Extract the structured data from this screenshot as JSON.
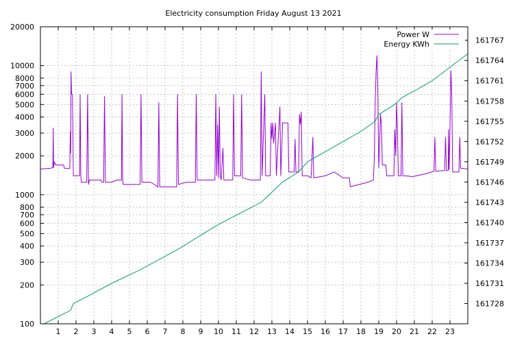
{
  "chart_data": {
    "type": "line",
    "title": "Electricity consumption Friday August 13 2021",
    "xlabel": "",
    "ylabel": "",
    "xlim": [
      0,
      24
    ],
    "x_ticks": [
      "1",
      "2",
      "3",
      "4",
      "5",
      "6",
      "7",
      "8",
      "9",
      "10",
      "11",
      "12",
      "13",
      "14",
      "15",
      "16",
      "17",
      "18",
      "19",
      "20",
      "21",
      "22",
      "23"
    ],
    "y_left": {
      "scale": "log",
      "lim": [
        100,
        20000
      ],
      "ticks": [
        "100",
        "200",
        "300",
        "400",
        "500",
        "600",
        "700",
        "800",
        "1000",
        "2000",
        "3000",
        "4000",
        "5000",
        "6000",
        "7000",
        "8000",
        "10000",
        "20000"
      ]
    },
    "y_right": {
      "scale": "linear",
      "lim": [
        161725,
        161769
      ],
      "ticks": [
        "161728",
        "161731",
        "161734",
        "161737",
        "161740",
        "161743",
        "161746",
        "161749",
        "161752",
        "161755",
        "161758",
        "161761",
        "161764",
        "161767"
      ]
    },
    "grid": true,
    "legend_position": "top-right",
    "series": [
      {
        "name": "Power W",
        "axis": "left",
        "color": "#9400d3",
        "values": [
          [
            0.0,
            1580
          ],
          [
            0.55,
            1600
          ],
          [
            0.7,
            1620
          ],
          [
            0.72,
            3300
          ],
          [
            0.74,
            1620
          ],
          [
            0.78,
            1800
          ],
          [
            0.85,
            1700
          ],
          [
            1.3,
            1700
          ],
          [
            1.35,
            1600
          ],
          [
            1.65,
            1600
          ],
          [
            1.68,
            3100
          ],
          [
            1.7,
            2100
          ],
          [
            1.72,
            9000
          ],
          [
            1.75,
            6000
          ],
          [
            1.8,
            6000
          ],
          [
            1.85,
            1400
          ],
          [
            2.2,
            1400
          ],
          [
            2.23,
            6000
          ],
          [
            2.27,
            1400
          ],
          [
            2.3,
            1250
          ],
          [
            2.6,
            1250
          ],
          [
            2.65,
            6000
          ],
          [
            2.7,
            1200
          ],
          [
            2.75,
            1300
          ],
          [
            3.4,
            1300
          ],
          [
            3.45,
            1250
          ],
          [
            3.55,
            1250
          ],
          [
            3.6,
            5800
          ],
          [
            3.65,
            1250
          ],
          [
            4.0,
            1250
          ],
          [
            4.3,
            1300
          ],
          [
            4.55,
            1300
          ],
          [
            4.58,
            6000
          ],
          [
            4.62,
            1300
          ],
          [
            4.65,
            1200
          ],
          [
            5.6,
            1200
          ],
          [
            5.65,
            6000
          ],
          [
            5.7,
            1250
          ],
          [
            6.2,
            1250
          ],
          [
            6.6,
            1150
          ],
          [
            6.65,
            5200
          ],
          [
            6.7,
            1150
          ],
          [
            7.0,
            1150
          ],
          [
            7.2,
            1150
          ],
          [
            7.65,
            1150
          ],
          [
            7.7,
            6000
          ],
          [
            7.75,
            1200
          ],
          [
            8.2,
            1250
          ],
          [
            8.7,
            1250
          ],
          [
            8.75,
            6000
          ],
          [
            8.8,
            1300
          ],
          [
            9.5,
            1300
          ],
          [
            9.8,
            1300
          ],
          [
            9.85,
            6000
          ],
          [
            9.9,
            1400
          ],
          [
            9.95,
            3500
          ],
          [
            10.0,
            1350
          ],
          [
            10.05,
            4800
          ],
          [
            10.1,
            1400
          ],
          [
            10.15,
            1300
          ],
          [
            10.25,
            2300
          ],
          [
            10.3,
            1300
          ],
          [
            10.8,
            1300
          ],
          [
            10.85,
            6000
          ],
          [
            10.9,
            1400
          ],
          [
            11.25,
            1400
          ],
          [
            11.3,
            6000
          ],
          [
            11.35,
            1350
          ],
          [
            11.8,
            1300
          ],
          [
            12.2,
            1300
          ],
          [
            12.35,
            1300
          ],
          [
            12.4,
            9000
          ],
          [
            12.45,
            1400
          ],
          [
            12.6,
            6000
          ],
          [
            12.65,
            1400
          ],
          [
            12.9,
            1400
          ],
          [
            12.95,
            3600
          ],
          [
            13.0,
            2700
          ],
          [
            13.05,
            3600
          ],
          [
            13.1,
            2500
          ],
          [
            13.2,
            3600
          ],
          [
            13.25,
            1400
          ],
          [
            13.45,
            4800
          ],
          [
            13.5,
            1400
          ],
          [
            13.6,
            3600
          ],
          [
            13.9,
            3600
          ],
          [
            13.95,
            1500
          ],
          [
            14.25,
            1500
          ],
          [
            14.3,
            2700
          ],
          [
            14.35,
            1500
          ],
          [
            14.5,
            1500
          ],
          [
            14.55,
            4200
          ],
          [
            14.6,
            3500
          ],
          [
            14.65,
            4400
          ],
          [
            14.7,
            1400
          ],
          [
            15.0,
            1400
          ],
          [
            15.2,
            1350
          ],
          [
            15.3,
            2800
          ],
          [
            15.35,
            1350
          ],
          [
            16.0,
            1400
          ],
          [
            16.5,
            1500
          ],
          [
            17.0,
            1350
          ],
          [
            17.35,
            1350
          ],
          [
            17.4,
            1150
          ],
          [
            17.9,
            1200
          ],
          [
            18.4,
            1250
          ],
          [
            18.7,
            1300
          ],
          [
            18.75,
            1900
          ],
          [
            18.8,
            5200
          ],
          [
            18.85,
            9000
          ],
          [
            18.9,
            12000
          ],
          [
            18.95,
            6000
          ],
          [
            19.0,
            1600
          ],
          [
            19.1,
            4200
          ],
          [
            19.15,
            3500
          ],
          [
            19.2,
            1700
          ],
          [
            19.4,
            1700
          ],
          [
            19.45,
            1400
          ],
          [
            19.85,
            1400
          ],
          [
            19.9,
            3200
          ],
          [
            19.95,
            2000
          ],
          [
            20.0,
            5200
          ],
          [
            20.05,
            3200
          ],
          [
            20.1,
            1400
          ],
          [
            20.25,
            1400
          ],
          [
            20.3,
            5200
          ],
          [
            20.35,
            1400
          ],
          [
            20.5,
            1400
          ],
          [
            20.9,
            1380
          ],
          [
            21.3,
            1420
          ],
          [
            21.7,
            1460
          ],
          [
            22.1,
            1520
          ],
          [
            22.15,
            2800
          ],
          [
            22.2,
            1520
          ],
          [
            22.7,
            1540
          ],
          [
            22.75,
            2800
          ],
          [
            22.8,
            1540
          ],
          [
            22.9,
            1540
          ],
          [
            22.92,
            3200
          ],
          [
            22.95,
            1560
          ],
          [
            23.0,
            3300
          ],
          [
            23.05,
            9200
          ],
          [
            23.1,
            6000
          ],
          [
            23.15,
            1500
          ],
          [
            23.5,
            1500
          ],
          [
            23.55,
            2800
          ],
          [
            23.6,
            1600
          ],
          [
            23.7,
            1600
          ],
          [
            24.0,
            1580
          ]
        ]
      },
      {
        "name": "Energy KWh",
        "axis": "right",
        "color": "#009e73",
        "values": [
          [
            0.2,
            161725.0
          ],
          [
            1.7,
            161727.0
          ],
          [
            1.85,
            161728.0
          ],
          [
            2.6,
            161729.0
          ],
          [
            4.0,
            161731.0
          ],
          [
            5.6,
            161733.0
          ],
          [
            7.7,
            161736.0
          ],
          [
            9.85,
            161739.5
          ],
          [
            11.3,
            161741.5
          ],
          [
            12.4,
            161743.0
          ],
          [
            13.0,
            161744.5
          ],
          [
            13.6,
            161746.0
          ],
          [
            14.5,
            161747.5
          ],
          [
            15.0,
            161749.0
          ],
          [
            16.0,
            161750.5
          ],
          [
            17.0,
            161752.0
          ],
          [
            18.0,
            161753.5
          ],
          [
            18.8,
            161755.0
          ],
          [
            19.0,
            161756.0
          ],
          [
            19.9,
            161757.5
          ],
          [
            20.3,
            161758.5
          ],
          [
            21.0,
            161759.5
          ],
          [
            22.0,
            161761.0
          ],
          [
            23.0,
            161763.0
          ],
          [
            24.0,
            161765.0
          ]
        ]
      }
    ]
  }
}
